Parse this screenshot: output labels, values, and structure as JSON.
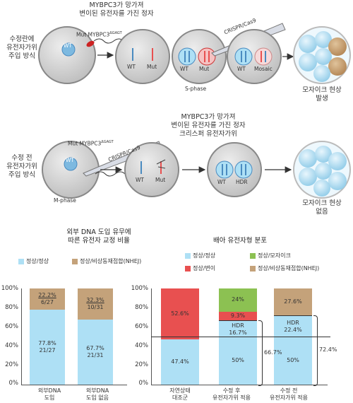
{
  "top_panel": {
    "method1": {
      "label": "수정란에\n유전자가위\n주입 방식",
      "sperm_title": "MYBPC3가 망가져\n변이된 유전자를 가진 정자",
      "mut_label": "Mut MYBPC3",
      "mut_sup": "ΔGAGT",
      "crispr_label": "CRISPR/Cas9",
      "cell1_wt": "WT",
      "cell2_wt": "WT",
      "cell2_mut": "Mut",
      "cell3_wt": "WT",
      "cell3_mut": "Mut",
      "cell3_phase": "S-phase",
      "cell4_wt": "WT",
      "cell4_mosaic": "Mosaic",
      "outcome": "모자이크 현상\n발생"
    },
    "method2": {
      "label": "수정 전\n유전자가위\n주입 방식",
      "title": "MYBPC3가 망가져\n변이된 유전자를 가진 정자\n크리스퍼 유전자가위",
      "mut_label": "Mut MYBPC3",
      "mut_sup": "ΔGAGT",
      "crispr_label": "CRISPR/Cas9",
      "cell1_wt": "WT",
      "cell1_phase": "M-phase",
      "cell2_wt": "WT",
      "cell2_mut": "Mut",
      "cell3_wt": "WT",
      "cell3_hdr": "HDR",
      "outcome": "모자이크 현상\n없음"
    }
  },
  "colors": {
    "normal": "#aee0f5",
    "nhej": "#c4a27a",
    "mosaic": "#8cc152",
    "mutant": "#e85050"
  },
  "chart_data": [
    {
      "type": "bar",
      "stacked": true,
      "title": "외부 DNA 도입 유무에\n따른 유전자 교정 비율",
      "legend": [
        "정상/정상",
        "정상/비상동재접합(NHEJ)"
      ],
      "categories": [
        "외부DNA\n도입",
        "외부DNA\n도입 없음"
      ],
      "yticks": [
        "100%",
        "80%",
        "60%",
        "40%",
        "20%",
        "0%"
      ],
      "ylim": [
        0,
        100
      ],
      "series": [
        {
          "name": "정상/정상",
          "values": [
            77.8,
            67.7
          ],
          "labels": [
            "77.8%",
            "67.7%"
          ],
          "counts": [
            "21/27",
            "21/31"
          ]
        },
        {
          "name": "정상/비상동재접합(NHEJ)",
          "values": [
            22.2,
            32.3
          ],
          "labels": [
            "22.2%",
            "32.3%"
          ],
          "counts": [
            "6/27",
            "10/31"
          ]
        }
      ]
    },
    {
      "type": "bar",
      "stacked": true,
      "title": "배아 유전자형 분포",
      "legend": [
        "정상/정상",
        "정상/모자이크",
        "정상/변이",
        "정상/비상동재접합(NHEJ)"
      ],
      "categories": [
        "자연상태\n대조군",
        "수정 후\n유전자가위 적용",
        "수정 전\n유전자가위 적용"
      ],
      "yticks": [
        "100%",
        "80%",
        "60%",
        "40%",
        "20%",
        "0%"
      ],
      "ylim": [
        0,
        100
      ],
      "segments": [
        [
          {
            "key": "normal",
            "value": 47.4,
            "label": "47.4%"
          },
          {
            "key": "mutant",
            "value": 52.6,
            "label": "52.6%"
          }
        ],
        [
          {
            "key": "normal",
            "value": 50,
            "label": "50%"
          },
          {
            "key": "normal",
            "value": 16.7,
            "label": "HDR\n16.7%",
            "hdr": true
          },
          {
            "key": "mutant",
            "value": 9.3,
            "label": "9.3%"
          },
          {
            "key": "mosaic",
            "value": 24,
            "label": "24%"
          }
        ],
        [
          {
            "key": "normal",
            "value": 50,
            "label": "50%"
          },
          {
            "key": "normal",
            "value": 22.4,
            "label": "HDR\n22.4%",
            "hdr": true
          },
          {
            "key": "nhej",
            "value": 27.6,
            "label": "27.6%"
          }
        ]
      ],
      "reference_line": 50,
      "brackets": [
        "66.7%",
        "72.4%"
      ]
    }
  ]
}
